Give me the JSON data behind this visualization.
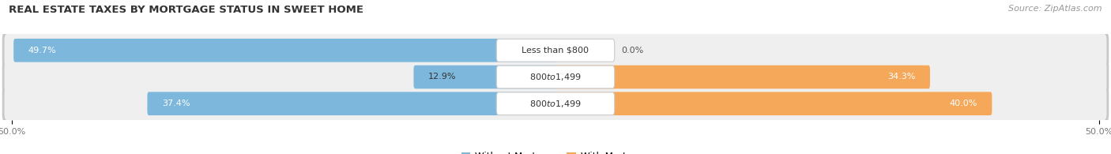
{
  "title": "REAL ESTATE TAXES BY MORTGAGE STATUS IN SWEET HOME",
  "source": "Source: ZipAtlas.com",
  "rows": [
    {
      "label": "Less than $800",
      "without_mortgage": 49.7,
      "with_mortgage": 0.0
    },
    {
      "label": "$800 to $1,499",
      "without_mortgage": 12.9,
      "with_mortgage": 34.3
    },
    {
      "label": "$800 to $1,499",
      "without_mortgage": 37.4,
      "with_mortgage": 40.0
    }
  ],
  "x_min": -50.0,
  "x_max": 50.0,
  "x_tick_labels": [
    "50.0%",
    "50.0%"
  ],
  "color_without": "#7DB8DC",
  "color_with": "#F5A85A",
  "color_without_light": "#B8D8EE",
  "color_with_light": "#F9C98A",
  "bar_height": 0.58,
  "background_row_color": "#DCDCDC",
  "background_inner_color": "#F0F0F0",
  "title_fontsize": 9.5,
  "source_fontsize": 8,
  "label_fontsize": 8,
  "tick_fontsize": 8,
  "legend_fontsize": 8.5
}
